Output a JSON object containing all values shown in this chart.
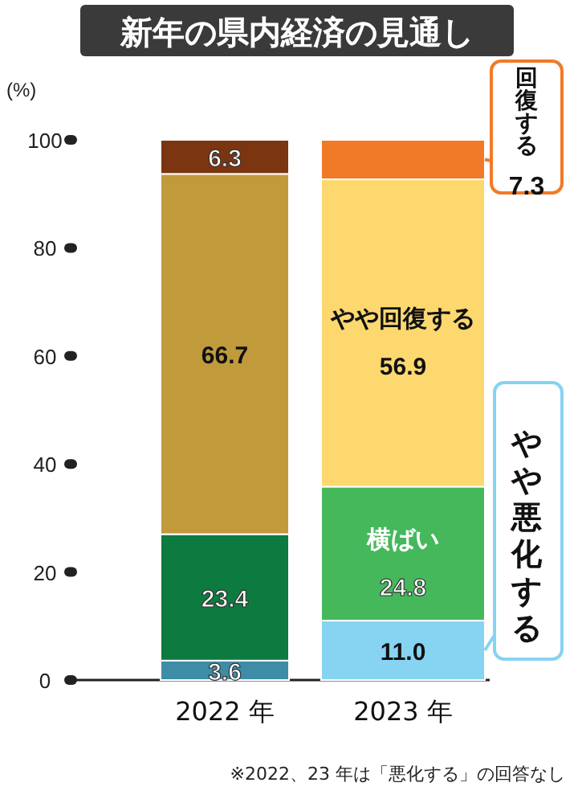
{
  "chart_data": {
    "type": "bar",
    "stacked": true,
    "title": "新年の県内経済の見通し",
    "ylabel": "(%)",
    "categories": [
      "2022 年",
      "2023 年"
    ],
    "series": [
      {
        "name": "やや悪化する",
        "colors": [
          "#3e8ca6",
          "#86d3f2"
        ],
        "values": [
          3.6,
          11.0
        ],
        "value_labels": [
          "3.6",
          "11.0"
        ]
      },
      {
        "name": "横ばい",
        "colors": [
          "#0d7a3f",
          "#45b85c"
        ],
        "values": [
          23.4,
          24.8
        ],
        "value_labels": [
          "23.4",
          "24.8"
        ]
      },
      {
        "name": "やや回復する",
        "colors": [
          "#c19a3c",
          "#fcd86f"
        ],
        "values": [
          66.7,
          56.9
        ],
        "value_labels": [
          "66.7",
          "56.9"
        ]
      },
      {
        "name": "回復する",
        "colors": [
          "#7b3510",
          "#f17a28"
        ],
        "values": [
          6.3,
          7.3
        ],
        "value_labels": [
          "6.3",
          "7.3"
        ]
      }
    ],
    "ylim": [
      0,
      100
    ],
    "yticks": [
      0,
      20,
      40,
      60,
      80,
      100
    ],
    "grid": false,
    "data_labels": true,
    "annotations": [
      "※2022、23 年は「悪化する」の回答なし"
    ]
  }
}
